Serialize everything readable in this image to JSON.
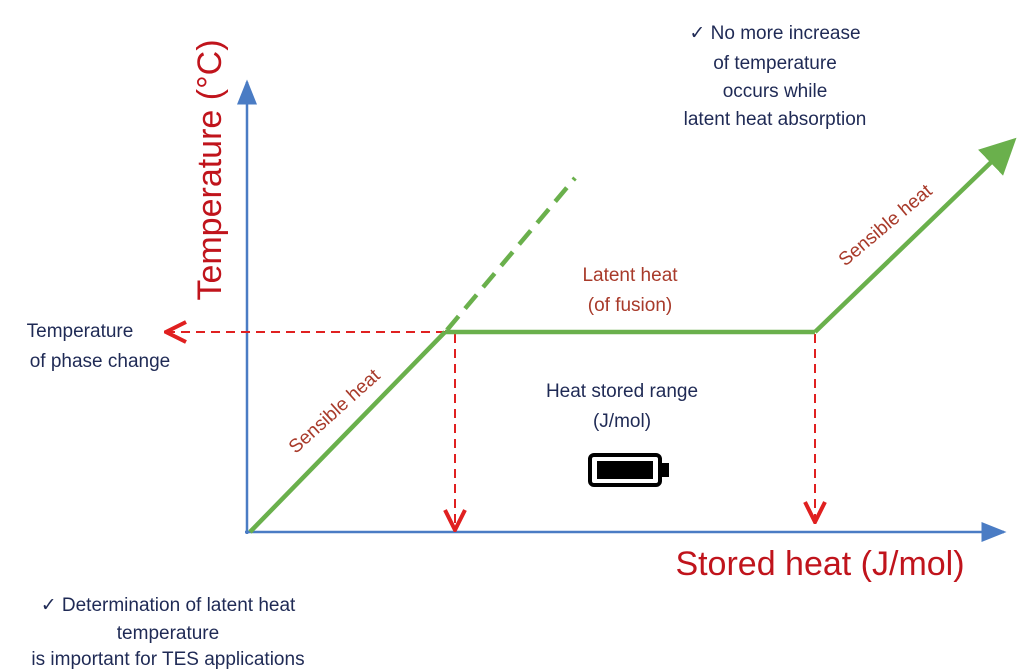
{
  "axes": {
    "y_label": "Temperature (°C)",
    "x_label": "Stored heat (J/mol)"
  },
  "notes": {
    "top": [
      "✓  No more increase",
      "of temperature",
      "occurs while",
      "latent heat absorption"
    ],
    "bottom": [
      "✓  Determination of latent heat",
      "temperature",
      "is important for TES applications"
    ]
  },
  "labels": {
    "phase_change": [
      "Temperature",
      "of phase change"
    ],
    "sensible_heat_1": "Sensible heat",
    "latent_heat": [
      "Latent heat",
      "(of fusion)"
    ],
    "sensible_heat_2": "Sensible heat",
    "stored_range": [
      "Heat stored range",
      "(J/mol)"
    ]
  }
}
